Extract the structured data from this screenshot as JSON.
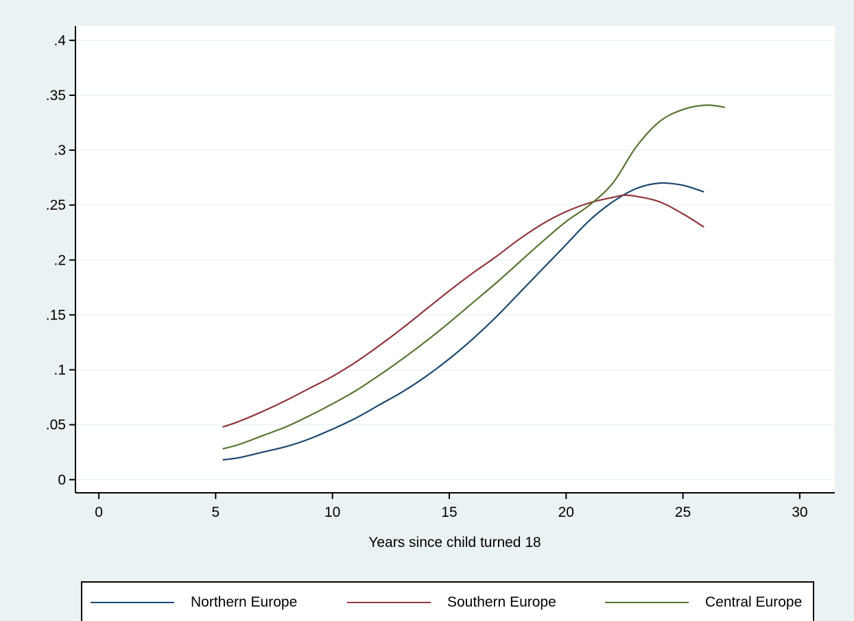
{
  "chart_data": {
    "type": "line",
    "title": "",
    "xlabel": "Years since child turned 18",
    "ylabel": "",
    "xlim": [
      -1,
      31.5
    ],
    "ylim": [
      -0.012,
      0.413
    ],
    "xticks": [
      0,
      5,
      10,
      15,
      20,
      25,
      30
    ],
    "xtick_labels": [
      "0",
      "5",
      "10",
      "15",
      "20",
      "25",
      "30"
    ],
    "yticks": [
      0,
      0.05,
      0.1,
      0.15,
      0.2,
      0.25,
      0.3,
      0.35,
      0.4
    ],
    "ytick_labels": [
      "0",
      ".05",
      ".1",
      ".15",
      ".2",
      ".25",
      ".3",
      ".35",
      ".4"
    ],
    "grid": true,
    "legend_position": "bottom",
    "series": [
      {
        "name": "Northern Europe",
        "color": "#1a476f",
        "x": [
          5.3,
          6,
          7,
          8,
          9,
          10,
          11,
          12,
          13,
          14,
          15,
          16,
          17,
          18,
          19,
          20,
          21,
          22,
          23,
          24,
          25,
          25.9
        ],
        "y": [
          0.018,
          0.02,
          0.025,
          0.03,
          0.037,
          0.046,
          0.056,
          0.068,
          0.08,
          0.094,
          0.11,
          0.128,
          0.148,
          0.17,
          0.192,
          0.214,
          0.236,
          0.253,
          0.265,
          0.27,
          0.268,
          0.262
        ]
      },
      {
        "name": "Southern Europe",
        "color": "#90353b",
        "x": [
          5.3,
          6,
          7,
          8,
          9,
          10,
          11,
          12,
          13,
          14,
          15,
          16,
          17,
          18,
          19,
          20,
          21,
          22,
          22.5,
          23,
          24,
          25,
          25.9
        ],
        "y": [
          0.048,
          0.053,
          0.062,
          0.072,
          0.083,
          0.094,
          0.107,
          0.122,
          0.138,
          0.155,
          0.172,
          0.188,
          0.203,
          0.219,
          0.233,
          0.244,
          0.252,
          0.257,
          0.259,
          0.258,
          0.253,
          0.242,
          0.23
        ]
      },
      {
        "name": "Central Europe",
        "color": "#55752f",
        "x": [
          5.3,
          6,
          7,
          8,
          9,
          10,
          11,
          12,
          13,
          14,
          15,
          16,
          17,
          18,
          19,
          20,
          21,
          22,
          23,
          24,
          25,
          26,
          26.8
        ],
        "y": [
          0.028,
          0.032,
          0.04,
          0.048,
          0.058,
          0.069,
          0.081,
          0.095,
          0.11,
          0.126,
          0.143,
          0.161,
          0.179,
          0.198,
          0.217,
          0.235,
          0.25,
          0.27,
          0.303,
          0.326,
          0.337,
          0.341,
          0.339
        ]
      }
    ]
  }
}
